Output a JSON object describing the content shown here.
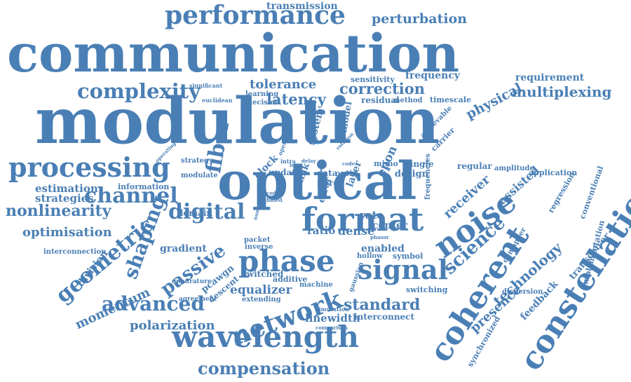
{
  "word_color": "#4a7fb5",
  "background_color": "#ffffff",
  "words": [
    {
      "text": "transmission"
    },
    {
      "text": "performance"
    },
    {
      "text": "perturbation"
    },
    {
      "text": "communication"
    },
    {
      "text": "modulation"
    },
    {
      "text": "tolerance"
    },
    {
      "text": "correction"
    },
    {
      "text": "frequency"
    },
    {
      "text": "requirement"
    },
    {
      "text": "complexity"
    },
    {
      "text": "latency"
    },
    {
      "text": "physical"
    },
    {
      "text": "multiplexing"
    },
    {
      "text": "processing"
    },
    {
      "text": "fiber"
    },
    {
      "text": "optical"
    },
    {
      "text": "noise"
    },
    {
      "text": "coherent"
    },
    {
      "text": "constellation"
    },
    {
      "text": "channel"
    },
    {
      "text": "estimation"
    },
    {
      "text": "strategies"
    },
    {
      "text": "nonlinearity"
    },
    {
      "text": "optimisation"
    },
    {
      "text": "geometric"
    },
    {
      "text": "digital"
    },
    {
      "text": "format"
    },
    {
      "text": "science"
    },
    {
      "text": "receiver"
    },
    {
      "text": "assisted"
    },
    {
      "text": "shaping"
    },
    {
      "text": "passive"
    },
    {
      "text": "phase"
    },
    {
      "text": "signal"
    },
    {
      "text": "technology"
    },
    {
      "text": "momentum"
    },
    {
      "text": "advanced"
    },
    {
      "text": "network"
    },
    {
      "text": "equalizer"
    },
    {
      "text": "standard"
    },
    {
      "text": "wavelength"
    },
    {
      "text": "polarization"
    },
    {
      "text": "linewidth"
    },
    {
      "text": "compensation"
    },
    {
      "text": "interconnect"
    },
    {
      "text": "feedback"
    },
    {
      "text": "presence"
    },
    {
      "text": "transceiver"
    },
    {
      "text": "synchronized"
    },
    {
      "text": "division"
    },
    {
      "text": "information"
    },
    {
      "text": "domain"
    },
    {
      "text": "gradient"
    },
    {
      "text": "pcawgn"
    },
    {
      "text": "descent"
    },
    {
      "text": "system"
    },
    {
      "text": "model"
    },
    {
      "text": "error"
    },
    {
      "text": "laser"
    },
    {
      "text": "design"
    },
    {
      "text": "single"
    },
    {
      "text": "rate"
    },
    {
      "text": "ratio"
    },
    {
      "text": "dense"
    },
    {
      "text": "center"
    },
    {
      "text": "enabled"
    },
    {
      "text": "symbol"
    },
    {
      "text": "hollow"
    },
    {
      "text": "switching"
    },
    {
      "text": "gaussian"
    },
    {
      "text": "machine"
    },
    {
      "text": "switched"
    },
    {
      "text": "additive"
    },
    {
      "text": "inverse"
    },
    {
      "text": "packet"
    },
    {
      "text": "extending"
    },
    {
      "text": "residual"
    },
    {
      "text": "method"
    },
    {
      "text": "timescale"
    },
    {
      "text": "sensitivity"
    },
    {
      "text": "learning"
    },
    {
      "text": "decision"
    },
    {
      "text": "euclidean"
    },
    {
      "text": "significant"
    },
    {
      "text": "regular"
    },
    {
      "text": "amplitude"
    },
    {
      "text": "application"
    },
    {
      "text": "regression"
    },
    {
      "text": "conventional"
    },
    {
      "text": "implementation"
    },
    {
      "text": "dispersion"
    },
    {
      "text": "demapper"
    },
    {
      "text": "frequencies"
    },
    {
      "text": "achievable"
    },
    {
      "text": "carrier"
    },
    {
      "text": "epon"
    },
    {
      "text": "data"
    },
    {
      "text": "fibre"
    },
    {
      "text": "optic"
    },
    {
      "text": "mimo"
    },
    {
      "text": "link"
    },
    {
      "text": "clock"
    },
    {
      "text": "update"
    },
    {
      "text": "strategy"
    },
    {
      "text": "modulate"
    },
    {
      "text": "agreement"
    },
    {
      "text": "quadrature"
    },
    {
      "text": "interconnection"
    },
    {
      "text": "simulation"
    },
    {
      "text": "comparison"
    },
    {
      "text": "operating"
    },
    {
      "text": "operation"
    },
    {
      "text": "rotation"
    },
    {
      "text": "based"
    },
    {
      "text": "coded"
    },
    {
      "text": "numerical"
    },
    {
      "text": "phasor"
    },
    {
      "text": "iece"
    },
    {
      "text": "code"
    },
    {
      "text": "intra"
    },
    {
      "text": "delay"
    }
  ]
}
